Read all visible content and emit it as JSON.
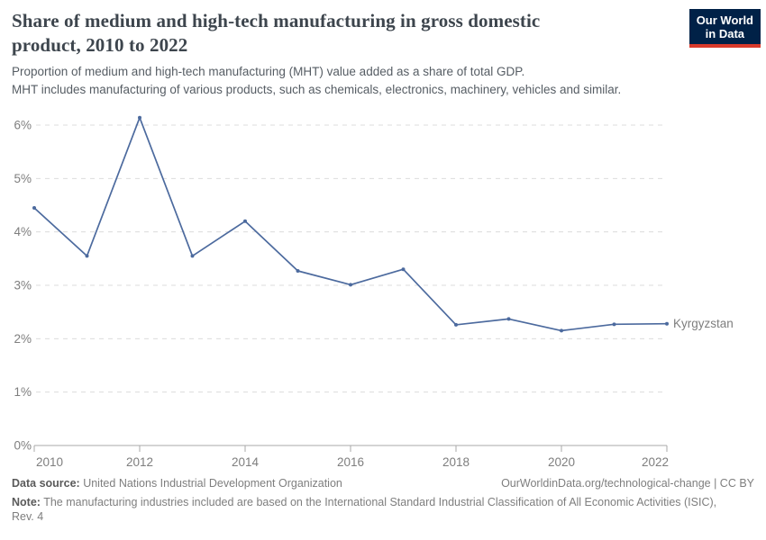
{
  "header": {
    "title_line1": "Share of medium and high-tech manufacturing in gross domestic",
    "title_line2": "product, 2010 to 2022",
    "subtitle_line1": "Proportion of medium and high-tech manufacturing (MHT) value added as a share of total GDP.",
    "subtitle_line2": "MHT includes manufacturing of various products, such as chemicals, electronics, machinery, vehicles and similar.",
    "logo": {
      "line1": "Our World",
      "line2": "in Data",
      "bg_color": "#002147",
      "accent_color": "#d93a2b"
    }
  },
  "chart_data": {
    "type": "line",
    "title": "Share of medium and high-tech manufacturing in gross domestic product, 2010 to 2022",
    "unit": "%",
    "x": [
      2010,
      2011,
      2012,
      2013,
      2014,
      2015,
      2016,
      2017,
      2018,
      2019,
      2020,
      2021,
      2022
    ],
    "series": [
      {
        "name": "Kyrgyzstan",
        "color": "#4c6a9e",
        "values": [
          4.45,
          3.55,
          6.14,
          3.55,
          4.2,
          3.27,
          3.01,
          3.3,
          2.26,
          2.37,
          2.15,
          2.27,
          2.28
        ]
      }
    ],
    "xlim": [
      2010,
      2022
    ],
    "ylim": [
      0,
      6
    ],
    "x_ticks": [
      2010,
      2012,
      2014,
      2016,
      2018,
      2020,
      2022
    ],
    "y_ticks": [
      0,
      1,
      2,
      3,
      4,
      5,
      6
    ],
    "y_tick_suffix": "%",
    "grid": "horizontal-dashed",
    "grid_color": "#dcdcdc",
    "axis_color": "#a8a8a8",
    "tick_label_color": "#7e7e7e",
    "legend_position": "end-of-line"
  },
  "footer": {
    "datasource_label": "Data source:",
    "datasource_value": " United Nations Industrial Development Organization",
    "citation": "OurWorldinData.org/technological-change | CC BY",
    "note_label": "Note:",
    "note_line1": " The manufacturing industries included are based on the International Standard Industrial Classification of All Economic Activities (ISIC),",
    "note_line2": "Rev. 4"
  }
}
